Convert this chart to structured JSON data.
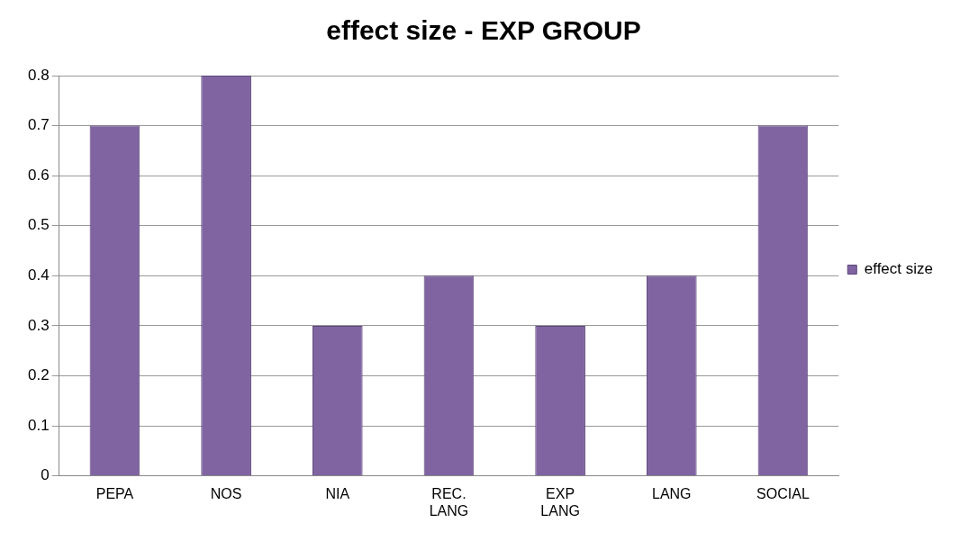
{
  "chart_data": {
    "type": "bar",
    "title": "effect size - EXP GROUP",
    "categories": [
      "PEPA",
      "NOS",
      "NIA",
      "REC. LANG",
      "EXP LANG",
      "LANG",
      "SOCIAL"
    ],
    "series": [
      {
        "name": "effect size",
        "color": "#8064a2",
        "values": [
          0.7,
          0.8,
          0.3,
          0.4,
          0.3,
          0.4,
          0.7
        ]
      }
    ],
    "ylim": [
      0,
      0.8
    ],
    "yticks": [
      0,
      0.1,
      0.2,
      0.3,
      0.4,
      0.5,
      0.6,
      0.7,
      0.8
    ],
    "grid": "y",
    "legend": "right"
  }
}
